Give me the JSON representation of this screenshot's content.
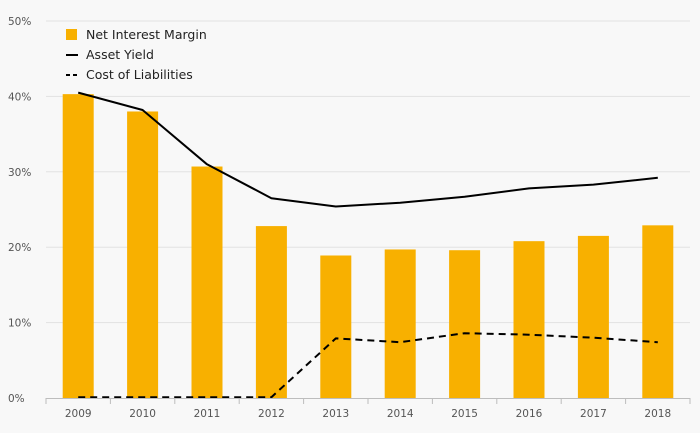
{
  "chart_data": {
    "type": "bar",
    "title": "",
    "xlabel": "",
    "ylabel": "",
    "categories": [
      "2009",
      "2010",
      "2011",
      "2012",
      "2013",
      "2014",
      "2015",
      "2016",
      "2017",
      "2018"
    ],
    "ylim": [
      0,
      50
    ],
    "yticks": [
      0,
      10,
      20,
      30,
      40,
      50
    ],
    "ytick_labels": [
      "0%",
      "10%",
      "20%",
      "30%",
      "40%",
      "50%"
    ],
    "grid": true,
    "legend_position": "top-left",
    "series": [
      {
        "name": "Net Interest Margin",
        "kind": "bar",
        "color": "#f8b000",
        "values": [
          40.3,
          38.0,
          30.7,
          22.8,
          18.9,
          19.7,
          19.6,
          20.8,
          21.5,
          22.9
        ]
      },
      {
        "name": "Asset Yield",
        "kind": "line",
        "style": "solid",
        "color": "#000000",
        "values": [
          40.5,
          38.2,
          31.0,
          26.5,
          25.4,
          25.9,
          26.7,
          27.8,
          28.3,
          29.2
        ]
      },
      {
        "name": "Cost of Liabilities",
        "kind": "line",
        "style": "dashed",
        "color": "#000000",
        "values": [
          0.1,
          0.1,
          0.1,
          0.1,
          7.9,
          7.4,
          8.6,
          8.4,
          8.0,
          7.4
        ]
      }
    ]
  }
}
